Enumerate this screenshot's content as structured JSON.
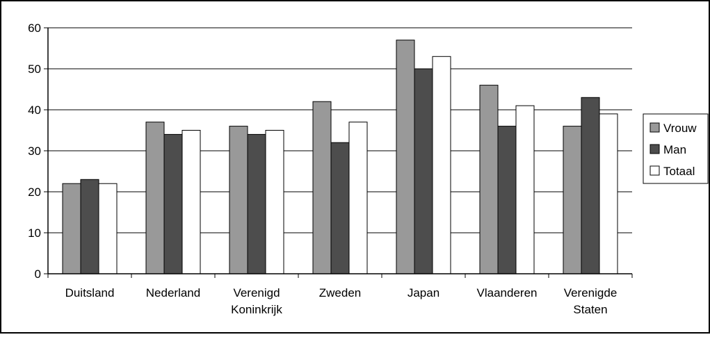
{
  "chart_data": {
    "type": "bar",
    "categories": [
      [
        "Duitsland"
      ],
      [
        "Nederland"
      ],
      [
        "Verenigd",
        "Koninkrijk"
      ],
      [
        "Zweden"
      ],
      [
        "Japan"
      ],
      [
        "Vlaanderen"
      ],
      [
        "Verenigde",
        "Staten"
      ]
    ],
    "series": [
      {
        "name": "Vrouw",
        "values": [
          22,
          37,
          36,
          42,
          57,
          46,
          36
        ]
      },
      {
        "name": "Man",
        "values": [
          23,
          34,
          34,
          32,
          50,
          36,
          43
        ]
      },
      {
        "name": "Totaal",
        "values": [
          22,
          35,
          35,
          37,
          53,
          41,
          39
        ]
      }
    ],
    "series_colors": [
      "#999999",
      "#4d4d4d",
      "#ffffff"
    ],
    "ylim": [
      0,
      60
    ],
    "yticks": [
      "0",
      "10",
      "20",
      "30",
      "40",
      "50",
      "60"
    ],
    "grid": true,
    "legend": "right",
    "title": "",
    "xlabel": "",
    "ylabel": ""
  }
}
